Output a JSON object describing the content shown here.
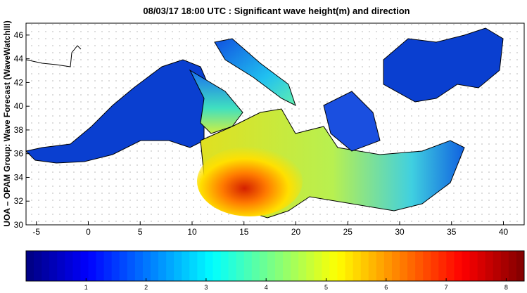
{
  "map": {
    "title": "08/03/17 18:00 UTC : Significant wave height(m) and direction",
    "ylabel": "UOA – OPAM Group: Wave Forecast  (WaveWatchIII)",
    "xlim": [
      -6,
      42
    ],
    "xticks": [
      -5,
      0,
      5,
      10,
      15,
      20,
      25,
      30,
      35,
      40
    ],
    "ylim": [
      30,
      47
    ],
    "yticks": [
      30,
      32,
      34,
      36,
      38,
      40,
      42,
      44,
      46
    ],
    "colorbar": {
      "lim": [
        0,
        8.3
      ],
      "ticks": [
        1,
        2,
        3,
        4,
        5,
        6,
        7,
        8
      ]
    }
  }
}
